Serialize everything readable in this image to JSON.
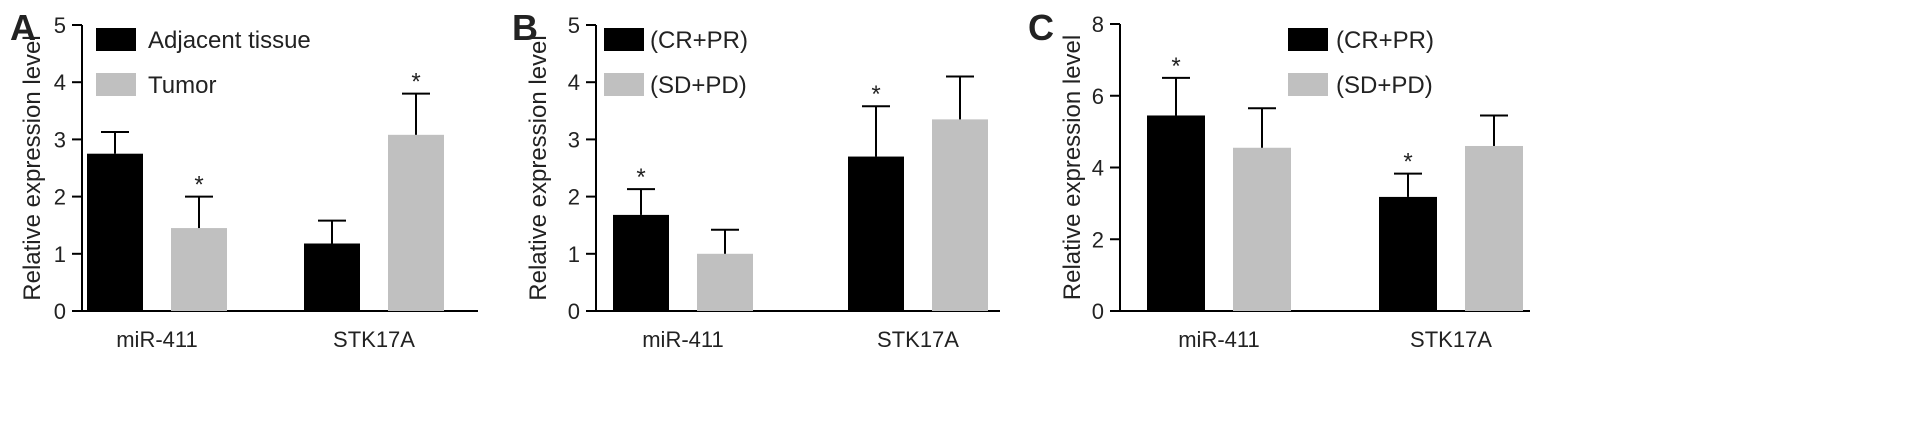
{
  "chart_data": [
    {
      "panel": "A",
      "type": "bar",
      "ylabel": "Relative expression level",
      "ylim": [
        0,
        5
      ],
      "yticks": [
        0,
        1,
        2,
        3,
        4,
        5
      ],
      "categories": [
        "miR-411",
        "STK17A"
      ],
      "series": [
        {
          "name": "Adjacent tissue",
          "color": "#000000",
          "values": [
            2.75,
            1.18
          ],
          "errors": [
            0.38,
            0.4
          ],
          "stars": [
            false,
            false
          ]
        },
        {
          "name": "Tumor",
          "color": "#c0c0c0",
          "values": [
            1.45,
            3.08
          ],
          "errors": [
            0.55,
            0.72
          ],
          "stars": [
            true,
            true
          ]
        }
      ],
      "legend_position": "top-left",
      "significance_mark": "*"
    },
    {
      "panel": "B",
      "type": "bar",
      "ylabel": "Relative expression level",
      "ylim": [
        0,
        5
      ],
      "yticks": [
        0,
        1,
        2,
        3,
        4,
        5
      ],
      "categories": [
        "miR-411",
        "STK17A"
      ],
      "series": [
        {
          "name": "(CR+PR)",
          "color": "#000000",
          "values": [
            1.68,
            2.7
          ],
          "errors": [
            0.45,
            0.88
          ],
          "stars": [
            true,
            true
          ]
        },
        {
          "name": "(SD+PD)",
          "color": "#c0c0c0",
          "values": [
            1.0,
            3.35
          ],
          "errors": [
            0.42,
            0.75
          ],
          "stars": [
            false,
            false
          ]
        }
      ],
      "legend_position": "top-left",
      "significance_mark": "*"
    },
    {
      "panel": "C",
      "type": "bar",
      "ylabel": "Relative expression level",
      "ylim": [
        0,
        8
      ],
      "yticks": [
        0,
        2,
        4,
        6,
        8
      ],
      "categories": [
        "miR-411",
        "STK17A"
      ],
      "series": [
        {
          "name": "(CR+PR)",
          "color": "#000000",
          "values": [
            5.45,
            3.18
          ],
          "errors": [
            1.05,
            0.65
          ],
          "stars": [
            true,
            true
          ]
        },
        {
          "name": "(SD+PD)",
          "color": "#c0c0c0",
          "values": [
            4.55,
            4.6
          ],
          "errors": [
            1.1,
            0.85
          ],
          "stars": [
            false,
            false
          ]
        }
      ],
      "legend_position": "top-center",
      "significance_mark": "*"
    }
  ]
}
